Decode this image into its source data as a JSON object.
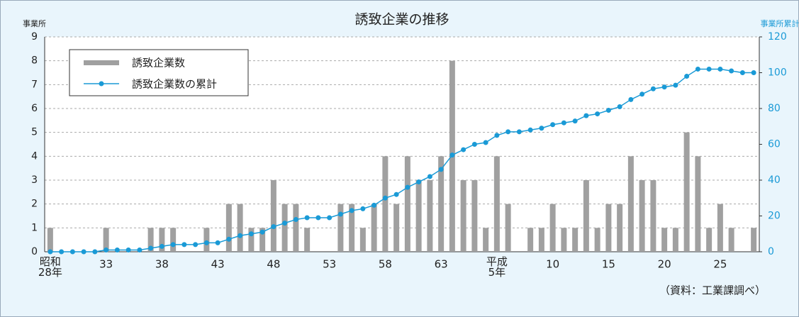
{
  "chart_data": {
    "type": "bar_line",
    "title": "誘致企業の推移",
    "y_axis_label": "事業所",
    "y2_axis_label": "事業所累計",
    "source": "（資料：工業課調べ）",
    "categories": [
      "昭和\n28年",
      null,
      null,
      null,
      null,
      "33",
      null,
      null,
      null,
      null,
      "38",
      null,
      null,
      null,
      null,
      "43",
      null,
      null,
      null,
      null,
      "48",
      null,
      null,
      null,
      null,
      "53",
      null,
      null,
      null,
      null,
      "58",
      null,
      null,
      null,
      null,
      "63",
      null,
      null,
      null,
      null,
      "平成\n5年",
      null,
      null,
      null,
      null,
      "10",
      null,
      null,
      null,
      null,
      "15",
      null,
      null,
      null,
      null,
      "20",
      null,
      null,
      null,
      null,
      "25",
      null,
      null,
      null
    ],
    "series": [
      {
        "name": "誘致企業数",
        "color": "#a0a0a0",
        "values": [
          1,
          0,
          0,
          0,
          0,
          1,
          0,
          0,
          0,
          1,
          1,
          1,
          0,
          0,
          1,
          0,
          2,
          2,
          1,
          1,
          3,
          2,
          2,
          1,
          0,
          0,
          2,
          2,
          1,
          2,
          4,
          2,
          4,
          3,
          3,
          4,
          8,
          3,
          3,
          1,
          4,
          2,
          0,
          1,
          1,
          2,
          1,
          1,
          3,
          1,
          2,
          2,
          4,
          3,
          3,
          1,
          1,
          5,
          4,
          1,
          2,
          1,
          0,
          1
        ]
      },
      {
        "name": "誘致企業数の累計",
        "color": "#1a9ad6",
        "axis": "y2",
        "values": [
          0,
          0,
          0,
          0,
          0,
          1,
          1,
          1,
          1,
          2,
          3,
          4,
          4,
          4,
          5,
          5,
          7,
          9,
          10,
          11,
          14,
          16,
          18,
          19,
          19,
          19,
          21,
          23,
          24,
          26,
          30,
          32,
          36,
          39,
          42,
          46,
          54,
          57,
          60,
          61,
          65,
          67,
          67,
          68,
          69,
          71,
          72,
          73,
          76,
          77,
          79,
          81,
          85,
          88,
          91,
          92,
          93,
          98,
          102,
          102,
          102,
          101,
          100,
          100
        ]
      }
    ],
    "ylim": [
      0,
      9
    ],
    "yticks": [
      0,
      1,
      2,
      3,
      4,
      5,
      6,
      7,
      8,
      9
    ],
    "y2lim": [
      0,
      120
    ],
    "y2ticks": [
      0,
      20,
      40,
      60,
      80,
      100,
      120
    ],
    "grid": true
  }
}
